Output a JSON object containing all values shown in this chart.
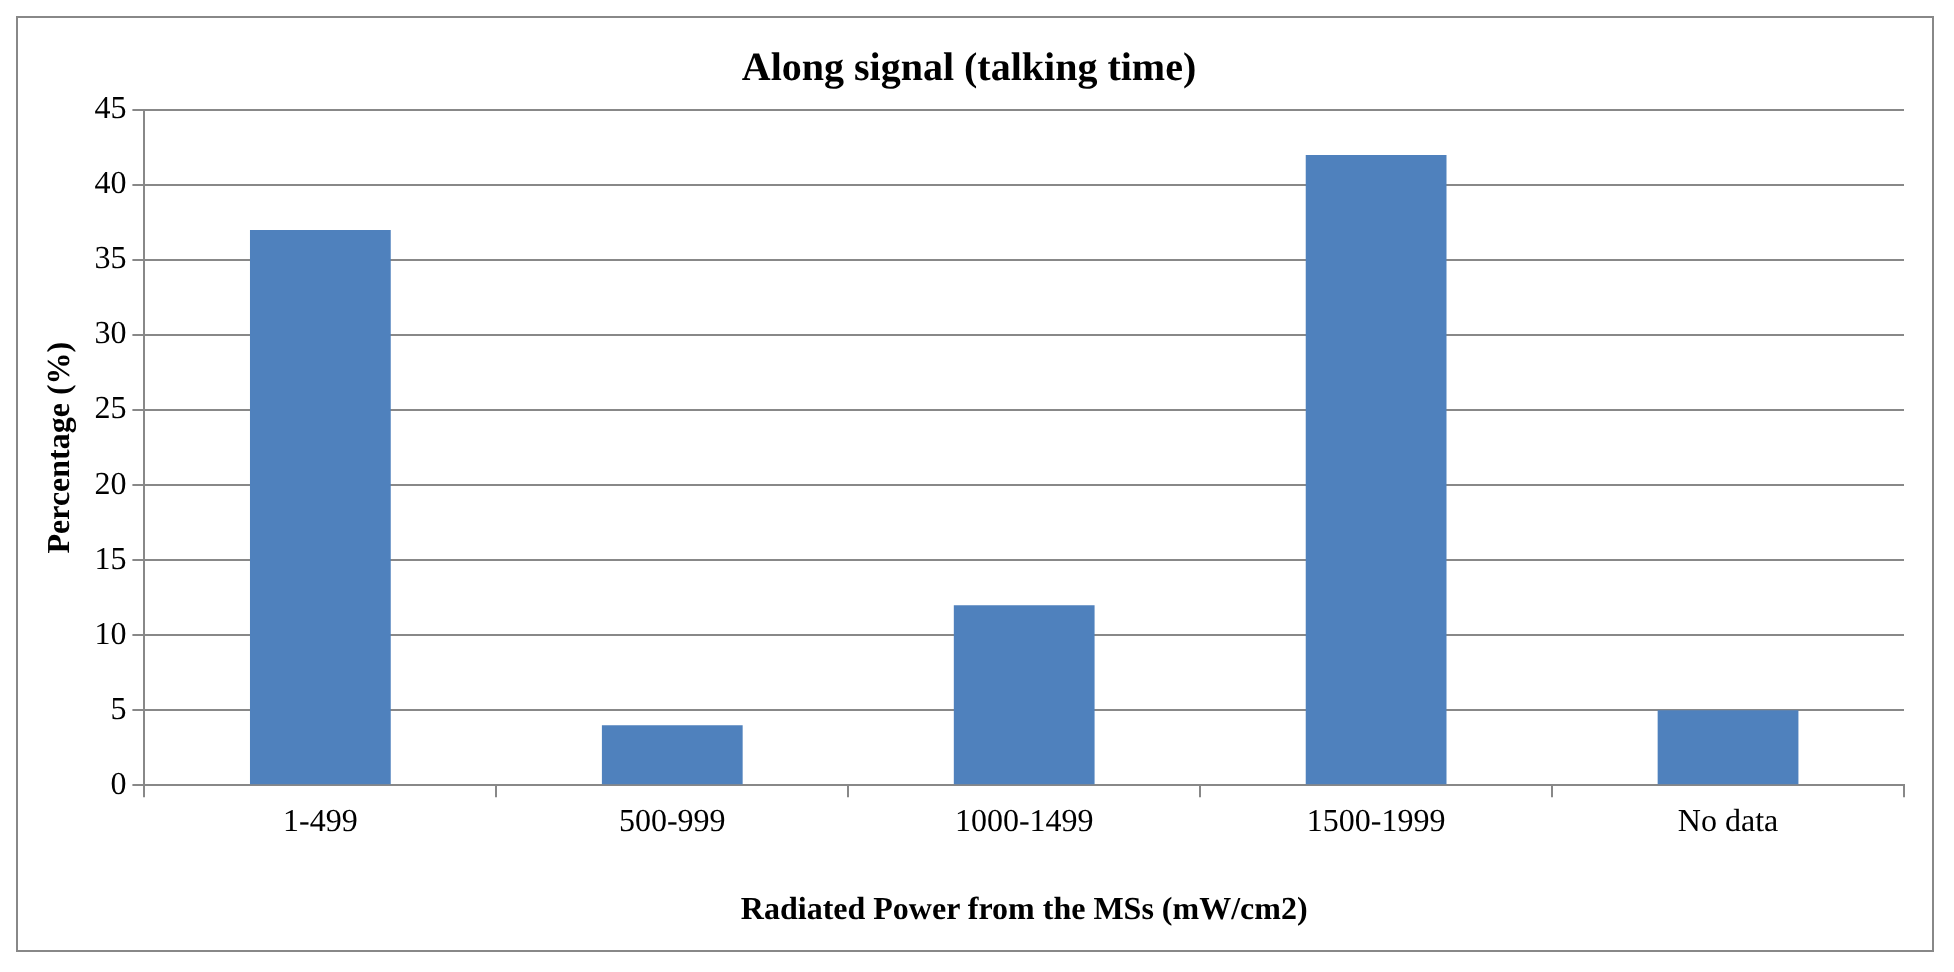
{
  "chart_data": {
    "type": "bar",
    "title": "Along signal (talking time)",
    "xlabel": "Radiated Power from the MSs (mW/cm2)",
    "ylabel": "Percentage (%)",
    "categories": [
      "1-499",
      "500-999",
      "1000-1499",
      "1500-1999",
      "No data"
    ],
    "values": [
      37,
      4,
      12,
      42,
      5
    ],
    "color": "#4f81bd",
    "ylim": [
      0,
      45
    ],
    "yticks": [
      0,
      5,
      10,
      15,
      20,
      25,
      30,
      35,
      40,
      45
    ],
    "grid": "y",
    "legend": false
  }
}
